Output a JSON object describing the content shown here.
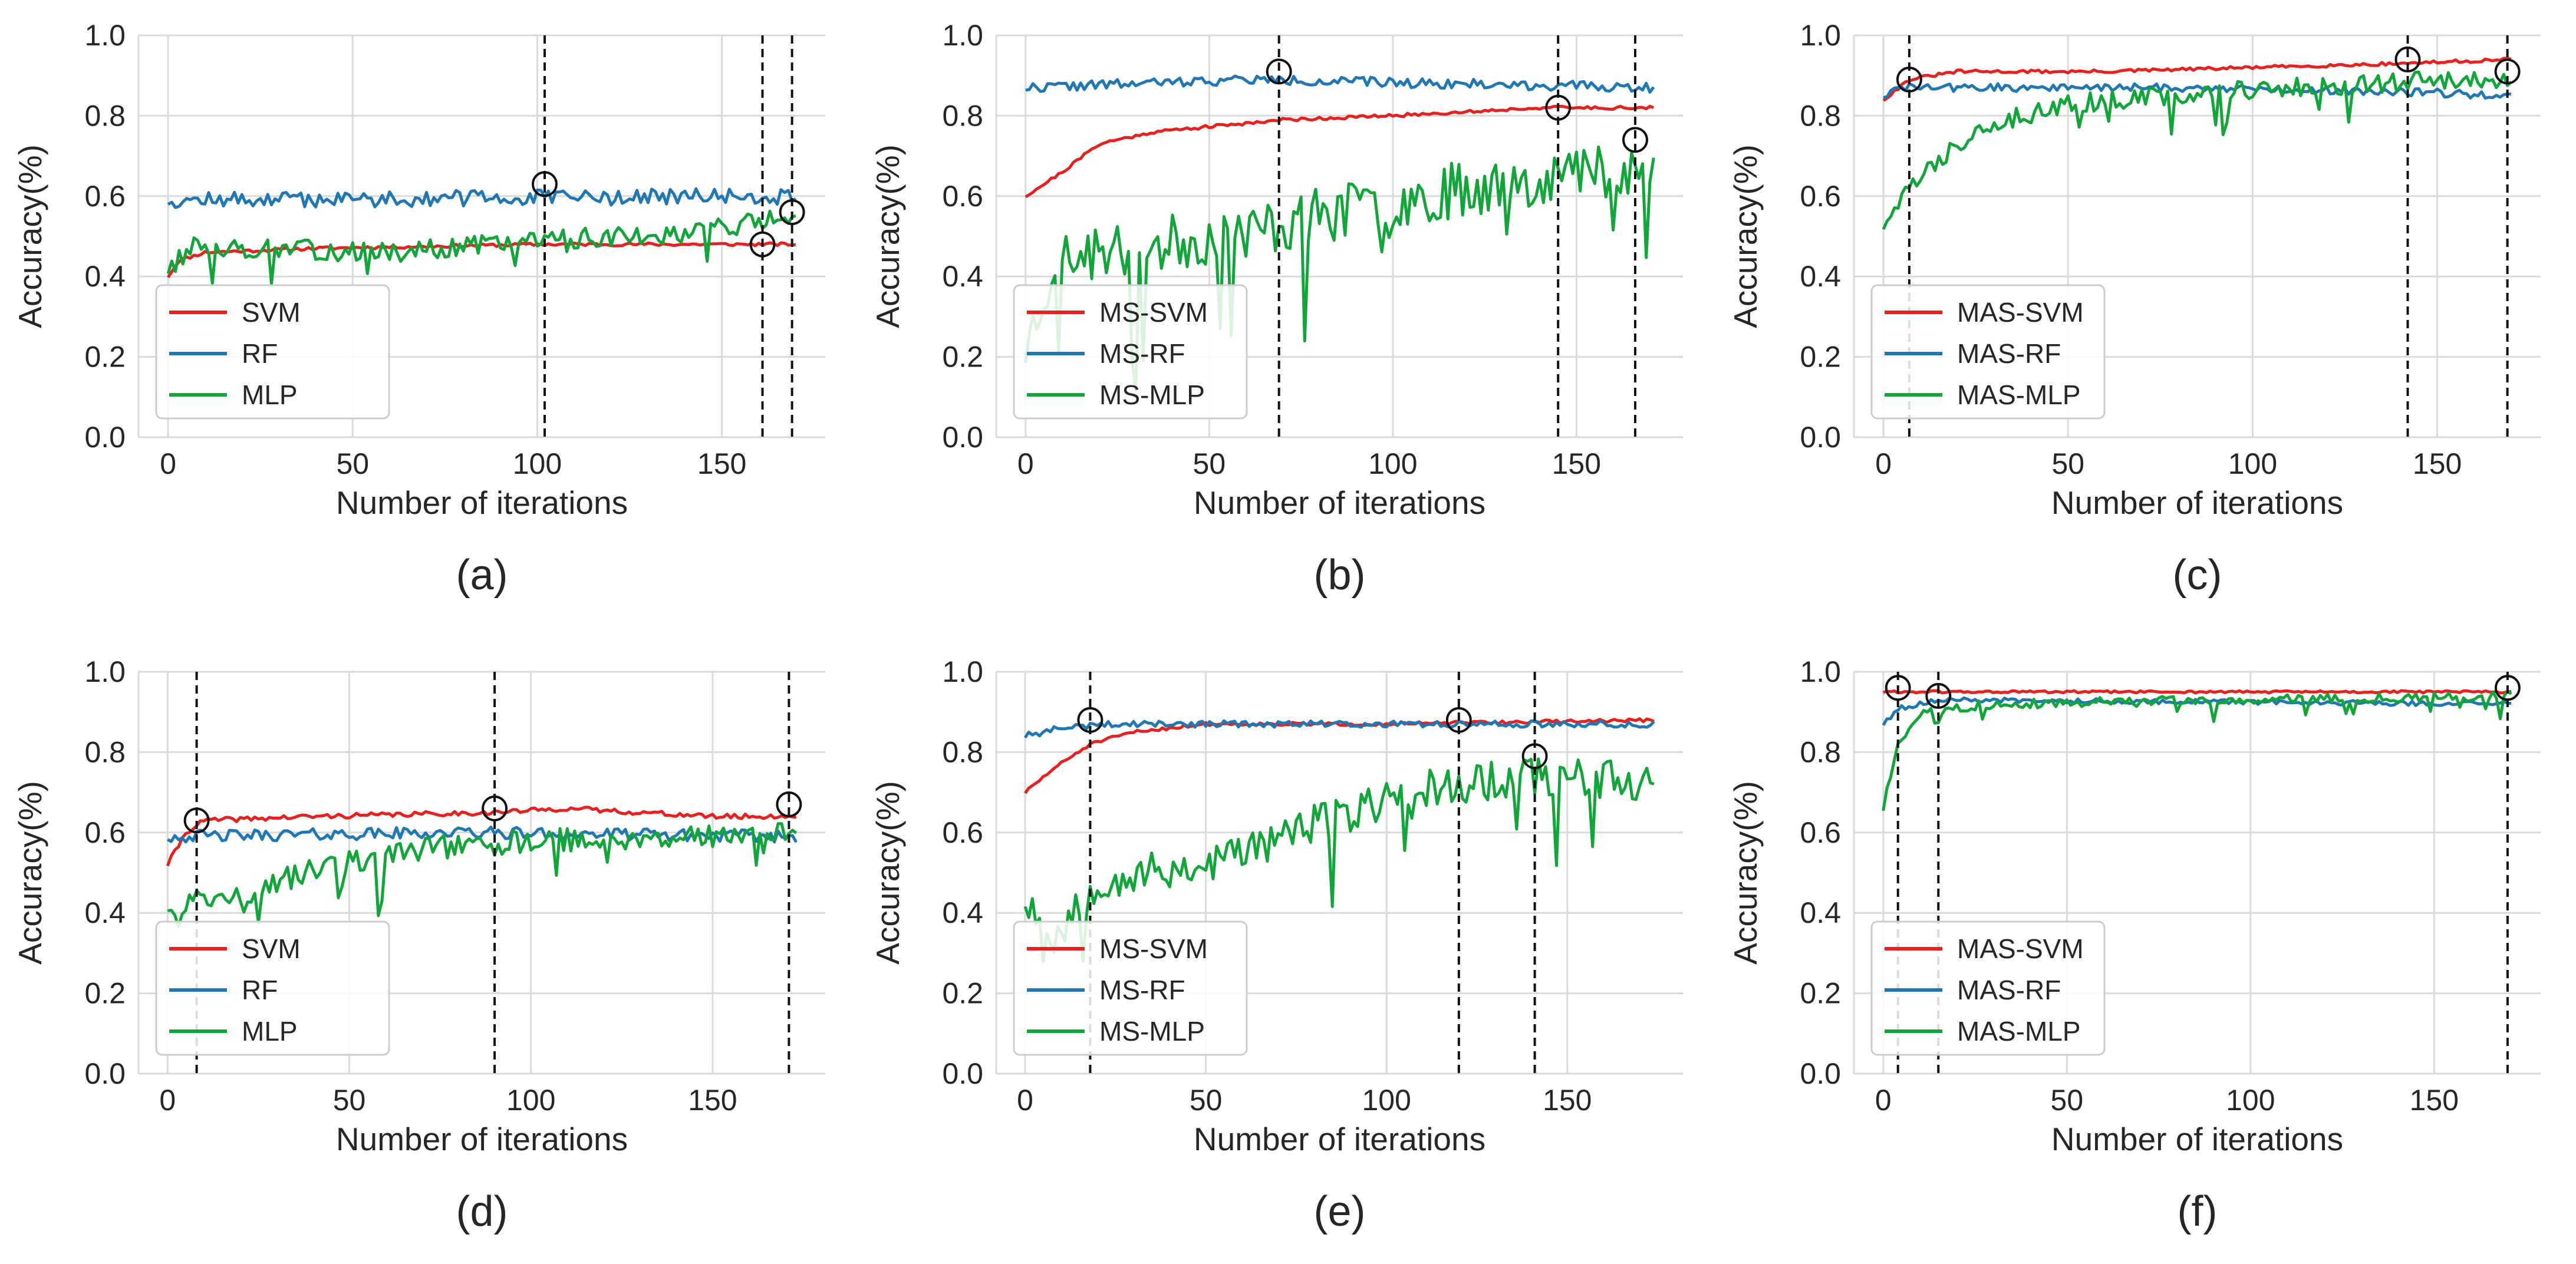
{
  "figure": {
    "background": "#ffffff",
    "grid_color": "#d9d9d9",
    "axis_color": "#262626"
  },
  "chart_data": [
    {
      "type": "line",
      "panel_label": "(a)",
      "title": "",
      "xlabel": "Number of iterations",
      "ylabel": "Accuracy(%)",
      "xlim": [
        -8,
        178
      ],
      "ylim": [
        0.0,
        1.0
      ],
      "xticks": [
        0,
        50,
        100,
        150
      ],
      "yticks": [
        0.0,
        0.2,
        0.4,
        0.6,
        0.8,
        1.0
      ],
      "xtick_labels": [
        "0",
        "50",
        "100",
        "150"
      ],
      "ytick_labels": [
        "0.0",
        "0.2",
        "0.4",
        "0.6",
        "0.8",
        "1.0"
      ],
      "grid": true,
      "legend_position": "lower-left",
      "n_points": 171,
      "series": [
        {
          "name": "SVM",
          "color": "#e8201e",
          "kind": "smooth",
          "anchors": [
            [
              0,
              0.4
            ],
            [
              3,
              0.44
            ],
            [
              10,
              0.46
            ],
            [
              40,
              0.47
            ],
            [
              100,
              0.48
            ],
            [
              170,
              0.48
            ]
          ],
          "noise": 0.004,
          "seed": 11
        },
        {
          "name": "RF",
          "color": "#1f77b4",
          "kind": "flat",
          "anchors": [
            [
              0,
              0.59
            ],
            [
              170,
              0.6
            ]
          ],
          "noise": 0.02,
          "seed": 12
        },
        {
          "name": "MLP",
          "color": "#12a63a",
          "kind": "noisy",
          "anchors": [
            [
              0,
              0.42
            ],
            [
              8,
              0.48
            ],
            [
              20,
              0.47
            ],
            [
              60,
              0.46
            ],
            [
              100,
              0.49
            ],
            [
              140,
              0.51
            ],
            [
              170,
              0.55
            ]
          ],
          "noise": 0.025,
          "seed": 13
        }
      ],
      "vlines": [
        102,
        161,
        169
      ],
      "markers": [
        {
          "x": 102,
          "y": 0.63
        },
        {
          "x": 161,
          "y": 0.48
        },
        {
          "x": 169,
          "y": 0.56
        }
      ]
    },
    {
      "type": "line",
      "panel_label": "(b)",
      "title": "",
      "xlabel": "Number of iterations",
      "ylabel": "Accuracy(%)",
      "xlim": [
        -8,
        179
      ],
      "ylim": [
        0.0,
        1.0
      ],
      "xticks": [
        0,
        50,
        100,
        150
      ],
      "yticks": [
        0.0,
        0.2,
        0.4,
        0.6,
        0.8,
        1.0
      ],
      "xtick_labels": [
        "0",
        "50",
        "100",
        "150"
      ],
      "ytick_labels": [
        "0.0",
        "0.2",
        "0.4",
        "0.6",
        "0.8",
        "1.0"
      ],
      "grid": true,
      "legend_position": "lower-left",
      "n_points": 172,
      "series": [
        {
          "name": "MS-SVM",
          "color": "#e8201e",
          "kind": "smooth",
          "anchors": [
            [
              0,
              0.6
            ],
            [
              10,
              0.66
            ],
            [
              20,
              0.73
            ],
            [
              35,
              0.76
            ],
            [
              70,
              0.79
            ],
            [
              100,
              0.8
            ],
            [
              140,
              0.82
            ],
            [
              171,
              0.82
            ]
          ],
          "noise": 0.004,
          "seed": 21
        },
        {
          "name": "MS-RF",
          "color": "#1f77b4",
          "kind": "flat",
          "anchors": [
            [
              0,
              0.87
            ],
            [
              60,
              0.89
            ],
            [
              171,
              0.87
            ]
          ],
          "noise": 0.012,
          "seed": 22
        },
        {
          "name": "MS-MLP",
          "color": "#12a63a",
          "kind": "noisy",
          "anchors": [
            [
              0,
              0.22
            ],
            [
              8,
              0.44
            ],
            [
              30,
              0.47
            ],
            [
              60,
              0.51
            ],
            [
              90,
              0.57
            ],
            [
              120,
              0.62
            ],
            [
              150,
              0.66
            ],
            [
              171,
              0.68
            ]
          ],
          "noise": 0.07,
          "seed": 23
        }
      ],
      "vlines": [
        69,
        145,
        166
      ],
      "markers": [
        {
          "x": 69,
          "y": 0.91
        },
        {
          "x": 145,
          "y": 0.82
        },
        {
          "x": 166,
          "y": 0.74
        }
      ]
    },
    {
      "type": "line",
      "panel_label": "(c)",
      "title": "",
      "xlabel": "Number of iterations",
      "ylabel": "Accuracy(%)",
      "xlim": [
        -8,
        178
      ],
      "ylim": [
        0.0,
        1.0
      ],
      "xticks": [
        0,
        50,
        100,
        150
      ],
      "yticks": [
        0.0,
        0.2,
        0.4,
        0.6,
        0.8,
        1.0
      ],
      "xtick_labels": [
        "0",
        "50",
        "100",
        "150"
      ],
      "ytick_labels": [
        "0.0",
        "0.2",
        "0.4",
        "0.6",
        "0.8",
        "1.0"
      ],
      "grid": true,
      "legend_position": "lower-left",
      "n_points": 171,
      "series": [
        {
          "name": "MAS-SVM",
          "color": "#e8201e",
          "kind": "smooth",
          "anchors": [
            [
              0,
              0.84
            ],
            [
              7,
              0.89
            ],
            [
              20,
              0.91
            ],
            [
              60,
              0.91
            ],
            [
              100,
              0.92
            ],
            [
              140,
              0.93
            ],
            [
              170,
              0.94
            ]
          ],
          "noise": 0.004,
          "seed": 31
        },
        {
          "name": "MAS-RF",
          "color": "#1f77b4",
          "kind": "flat",
          "anchors": [
            [
              0,
              0.85
            ],
            [
              5,
              0.87
            ],
            [
              80,
              0.87
            ],
            [
              140,
              0.86
            ],
            [
              170,
              0.85
            ]
          ],
          "noise": 0.01,
          "seed": 32
        },
        {
          "name": "MAS-MLP",
          "color": "#12a63a",
          "kind": "noisy",
          "anchors": [
            [
              0,
              0.53
            ],
            [
              8,
              0.63
            ],
            [
              25,
              0.77
            ],
            [
              50,
              0.83
            ],
            [
              90,
              0.86
            ],
            [
              130,
              0.88
            ],
            [
              170,
              0.89
            ]
          ],
          "noise": 0.025,
          "seed": 33
        }
      ],
      "vlines": [
        7,
        142,
        169
      ],
      "markers": [
        {
          "x": 7,
          "y": 0.89
        },
        {
          "x": 142,
          "y": 0.94
        },
        {
          "x": 169,
          "y": 0.91
        }
      ]
    },
    {
      "type": "line",
      "panel_label": "(d)",
      "title": "",
      "xlabel": "Number of iterations",
      "ylabel": "Accuracy(%)",
      "xlim": [
        -8,
        181
      ],
      "ylim": [
        0.0,
        1.0
      ],
      "xticks": [
        0,
        50,
        100,
        150
      ],
      "yticks": [
        0.0,
        0.2,
        0.4,
        0.6,
        0.8,
        1.0
      ],
      "xtick_labels": [
        "0",
        "50",
        "100",
        "150"
      ],
      "ytick_labels": [
        "0.0",
        "0.2",
        "0.4",
        "0.6",
        "0.8",
        "1.0"
      ],
      "grid": true,
      "legend_position": "lower-left",
      "n_points": 174,
      "series": [
        {
          "name": "SVM",
          "color": "#e8201e",
          "kind": "smooth",
          "anchors": [
            [
              0,
              0.52
            ],
            [
              5,
              0.6
            ],
            [
              10,
              0.63
            ],
            [
              40,
              0.64
            ],
            [
              90,
              0.65
            ],
            [
              110,
              0.66
            ],
            [
              150,
              0.64
            ],
            [
              173,
              0.64
            ]
          ],
          "noise": 0.006,
          "seed": 41
        },
        {
          "name": "RF",
          "color": "#1f77b4",
          "kind": "flat",
          "anchors": [
            [
              0,
              0.59
            ],
            [
              80,
              0.6
            ],
            [
              173,
              0.59
            ]
          ],
          "noise": 0.015,
          "seed": 42
        },
        {
          "name": "MLP",
          "color": "#12a63a",
          "kind": "noisy",
          "anchors": [
            [
              0,
              0.42
            ],
            [
              20,
              0.44
            ],
            [
              40,
              0.51
            ],
            [
              70,
              0.56
            ],
            [
              100,
              0.58
            ],
            [
              140,
              0.59
            ],
            [
              173,
              0.6
            ]
          ],
          "noise": 0.03,
          "seed": 43
        }
      ],
      "vlines": [
        8,
        90,
        171
      ],
      "markers": [
        {
          "x": 8,
          "y": 0.63
        },
        {
          "x": 90,
          "y": 0.66
        },
        {
          "x": 171,
          "y": 0.67
        }
      ]
    },
    {
      "type": "line",
      "panel_label": "(e)",
      "title": "",
      "xlabel": "Number of iterations",
      "ylabel": "Accuracy(%)",
      "xlim": [
        -8,
        182
      ],
      "ylim": [
        0.0,
        1.0
      ],
      "xticks": [
        0,
        50,
        100,
        150
      ],
      "yticks": [
        0.0,
        0.2,
        0.4,
        0.6,
        0.8,
        1.0
      ],
      "xtick_labels": [
        "0",
        "50",
        "100",
        "150"
      ],
      "ytick_labels": [
        "0.0",
        "0.2",
        "0.4",
        "0.6",
        "0.8",
        "1.0"
      ],
      "grid": true,
      "legend_position": "lower-left",
      "n_points": 175,
      "series": [
        {
          "name": "MS-SVM",
          "color": "#e8201e",
          "kind": "smooth",
          "anchors": [
            [
              0,
              0.7
            ],
            [
              8,
              0.76
            ],
            [
              18,
              0.82
            ],
            [
              30,
              0.85
            ],
            [
              50,
              0.87
            ],
            [
              100,
              0.87
            ],
            [
              174,
              0.88
            ]
          ],
          "noise": 0.004,
          "seed": 51
        },
        {
          "name": "MS-RF",
          "color": "#1f77b4",
          "kind": "flat",
          "anchors": [
            [
              0,
              0.84
            ],
            [
              10,
              0.86
            ],
            [
              25,
              0.87
            ],
            [
              174,
              0.87
            ]
          ],
          "noise": 0.008,
          "seed": 52
        },
        {
          "name": "MS-MLP",
          "color": "#12a63a",
          "kind": "noisy",
          "anchors": [
            [
              0,
              0.44
            ],
            [
              8,
              0.34
            ],
            [
              20,
              0.48
            ],
            [
              50,
              0.52
            ],
            [
              80,
              0.62
            ],
            [
              110,
              0.71
            ],
            [
              140,
              0.74
            ],
            [
              174,
              0.73
            ]
          ],
          "noise": 0.05,
          "seed": 53
        }
      ],
      "vlines": [
        18,
        120,
        141
      ],
      "markers": [
        {
          "x": 18,
          "y": 0.88
        },
        {
          "x": 120,
          "y": 0.88
        },
        {
          "x": 141,
          "y": 0.79
        }
      ]
    },
    {
      "type": "line",
      "panel_label": "(f)",
      "title": "",
      "xlabel": "Number of iterations",
      "ylabel": "Accuracy(%)",
      "xlim": [
        -8,
        179
      ],
      "ylim": [
        0.0,
        1.0
      ],
      "xticks": [
        0,
        50,
        100,
        150
      ],
      "yticks": [
        0.0,
        0.2,
        0.4,
        0.6,
        0.8,
        1.0
      ],
      "xtick_labels": [
        "0",
        "50",
        "100",
        "150"
      ],
      "ytick_labels": [
        "0.0",
        "0.2",
        "0.4",
        "0.6",
        "0.8",
        "1.0"
      ],
      "grid": true,
      "legend_position": "lower-left",
      "n_points": 172,
      "series": [
        {
          "name": "MAS-SVM",
          "color": "#e8201e",
          "kind": "smooth",
          "anchors": [
            [
              0,
              0.95
            ],
            [
              20,
              0.95
            ],
            [
              60,
              0.95
            ],
            [
              120,
              0.95
            ],
            [
              171,
              0.95
            ]
          ],
          "noise": 0.003,
          "seed": 61
        },
        {
          "name": "MAS-RF",
          "color": "#1f77b4",
          "kind": "flat",
          "anchors": [
            [
              0,
              0.87
            ],
            [
              5,
              0.91
            ],
            [
              15,
              0.93
            ],
            [
              171,
              0.92
            ]
          ],
          "noise": 0.006,
          "seed": 62
        },
        {
          "name": "MAS-MLP",
          "color": "#12a63a",
          "kind": "noisy",
          "anchors": [
            [
              0,
              0.66
            ],
            [
              4,
              0.82
            ],
            [
              10,
              0.9
            ],
            [
              30,
              0.92
            ],
            [
              100,
              0.93
            ],
            [
              171,
              0.94
            ]
          ],
          "noise": 0.012,
          "seed": 63
        }
      ],
      "vlines": [
        4,
        15,
        170
      ],
      "markers": [
        {
          "x": 4,
          "y": 0.96
        },
        {
          "x": 15,
          "y": 0.94
        },
        {
          "x": 170,
          "y": 0.96
        }
      ]
    }
  ]
}
